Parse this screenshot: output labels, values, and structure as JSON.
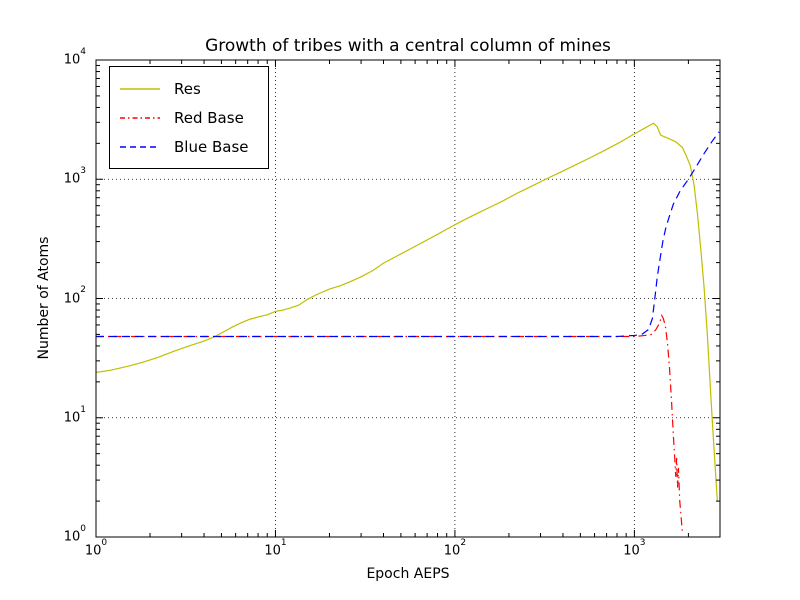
{
  "title": "Growth of tribes with a central column of mines",
  "axes": {
    "xlabel": "Epoch AEPS",
    "ylabel": "Number of Atoms",
    "x_tick_exponents": [
      0,
      1,
      2,
      3
    ],
    "y_tick_exponents": [
      0,
      1,
      2,
      3,
      4
    ],
    "x_grid_exponents": [
      1,
      2,
      3
    ],
    "y_grid_exponents": [
      1,
      2,
      3
    ]
  },
  "legend": {
    "position": "upper left",
    "items": [
      {
        "label": "Res",
        "color": "#bfbf00",
        "style": "solid"
      },
      {
        "label": "Red Base",
        "color": "#ff0000",
        "style": "dashdot"
      },
      {
        "label": "Blue Base",
        "color": "#0000ff",
        "style": "dashed"
      }
    ]
  },
  "chart_data": {
    "type": "line",
    "title": "Growth of tribes with a central column of mines",
    "xlabel": "Epoch AEPS",
    "ylabel": "Number of Atoms",
    "xscale": "log",
    "yscale": "log",
    "xlim": [
      1,
      3000
    ],
    "ylim": [
      1,
      10000
    ],
    "grid": true,
    "grid_style": "dotted",
    "legend_position": "upper left",
    "series": [
      {
        "name": "Res",
        "color": "#bfbf00",
        "linestyle": "solid",
        "x": [
          1,
          1.2,
          1.5,
          1.8,
          2.2,
          2.7,
          3.3,
          4,
          4.6,
          5.2,
          5.8,
          6.5,
          7.2,
          8,
          9,
          10,
          11,
          12,
          13.5,
          15,
          17,
          20,
          23,
          26,
          30,
          35,
          40,
          47,
          55,
          65,
          78,
          92,
          110,
          130,
          155,
          185,
          220,
          265,
          320,
          385,
          460,
          560,
          680,
          820,
          1000,
          1150,
          1280,
          1340,
          1400,
          1460,
          1550,
          1700,
          1850,
          1950,
          2050,
          2150,
          2250,
          2350,
          2450,
          2550,
          2650,
          2750,
          2850,
          2900
        ],
        "y": [
          24,
          25,
          27,
          29,
          32,
          36,
          40,
          44,
          48,
          53,
          58,
          63,
          67,
          70,
          73,
          78,
          80,
          83,
          88,
          98,
          108,
          120,
          128,
          138,
          152,
          172,
          198,
          225,
          255,
          292,
          338,
          388,
          448,
          508,
          578,
          658,
          758,
          868,
          1000,
          1140,
          1300,
          1500,
          1740,
          2020,
          2400,
          2700,
          2950,
          2750,
          2350,
          2280,
          2200,
          2060,
          1850,
          1560,
          1300,
          900,
          500,
          250,
          120,
          50,
          18,
          7,
          3,
          2
        ]
      },
      {
        "name": "Red Base",
        "color": "#ff0000",
        "linestyle": "dashdot",
        "x": [
          1,
          1.5,
          2,
          3,
          5,
          8,
          12,
          20,
          35,
          60,
          100,
          170,
          300,
          500,
          800,
          1000,
          1150,
          1250,
          1320,
          1380,
          1420,
          1450,
          1490,
          1530,
          1570,
          1610,
          1650,
          1680,
          1700,
          1720,
          1740,
          1760,
          1790,
          1820,
          1850
        ],
        "y": [
          48,
          48,
          48,
          48,
          48,
          48,
          48,
          48,
          48,
          48,
          48,
          48,
          48,
          48,
          48,
          48,
          49,
          50,
          55,
          62,
          72,
          68,
          58,
          42,
          26,
          14,
          7,
          4.5,
          3.2,
          4.6,
          2.6,
          3.8,
          2,
          1.5,
          1.1
        ]
      },
      {
        "name": "Blue Base",
        "color": "#0000ff",
        "linestyle": "dashed",
        "x": [
          1,
          1.5,
          2,
          3,
          5,
          8,
          12,
          20,
          35,
          60,
          100,
          170,
          300,
          500,
          800,
          1000,
          1100,
          1200,
          1260,
          1300,
          1340,
          1390,
          1440,
          1490,
          1560,
          1650,
          1800,
          2000,
          2200,
          2450,
          2700,
          2965
        ],
        "y": [
          48,
          48,
          48,
          48,
          48,
          48,
          48,
          48,
          48,
          48,
          48,
          48,
          48,
          48,
          48,
          49,
          50,
          55,
          68,
          100,
          150,
          215,
          300,
          380,
          480,
          620,
          800,
          1000,
          1260,
          1650,
          2060,
          2500
        ]
      }
    ]
  }
}
